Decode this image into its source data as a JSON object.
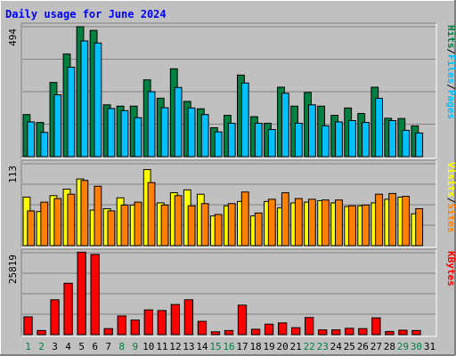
{
  "title": "Daily usage for June 2024",
  "colors": {
    "background": "#c0c0c0",
    "plot_background": "#c0c0c0",
    "title": "#0000ff",
    "hits": "#008040",
    "files": "#00c0ff",
    "visits": "#ffff00",
    "sites": "#ff8000",
    "kbytes": "#ff0000",
    "weekend_label": "#008040",
    "weekday_label": "#000000"
  },
  "days": [
    "1",
    "2",
    "3",
    "4",
    "5",
    "6",
    "7",
    "8",
    "9",
    "10",
    "11",
    "12",
    "13",
    "14",
    "15",
    "16",
    "17",
    "18",
    "19",
    "20",
    "21",
    "22",
    "23",
    "24",
    "25",
    "26",
    "27",
    "28",
    "29",
    "30",
    "31"
  ],
  "weekend_days": [
    1,
    2,
    8,
    9,
    15,
    16,
    22,
    23,
    29,
    30
  ],
  "chart_data": [
    {
      "type": "bar",
      "panel": "hits-files",
      "ylim": [
        0,
        494
      ],
      "tick_label": "494",
      "legend": [
        "Pages",
        "Files",
        "Hits"
      ],
      "series": [
        {
          "name": "Hits",
          "values": [
            160,
            130,
            282,
            390,
            494,
            480,
            197,
            192,
            192,
            292,
            222,
            334,
            210,
            182,
            110,
            157,
            310,
            152,
            127,
            264,
            192,
            244,
            192,
            157,
            185,
            164,
            264,
            146,
            145,
            117,
            0
          ]
        },
        {
          "name": "Files",
          "values": [
            132,
            92,
            235,
            340,
            440,
            432,
            183,
            175,
            148,
            247,
            186,
            263,
            185,
            160,
            94,
            127,
            280,
            127,
            103,
            241,
            127,
            197,
            117,
            132,
            137,
            130,
            222,
            137,
            100,
            90,
            0
          ]
        },
        {
          "name": "Pages",
          "values": [
            0,
            0,
            0,
            0,
            0,
            0,
            0,
            0,
            0,
            0,
            0,
            0,
            0,
            0,
            0,
            0,
            0,
            0,
            0,
            0,
            0,
            0,
            0,
            0,
            0,
            0,
            0,
            0,
            0,
            0,
            0
          ]
        }
      ]
    },
    {
      "type": "bar",
      "panel": "visits-sites",
      "ylim": [
        0,
        113
      ],
      "tick_label": "113",
      "legend": [
        "Sites",
        "Visits"
      ],
      "series": [
        {
          "name": "Visits",
          "values": [
            67,
            47,
            69,
            78,
            92,
            49,
            51,
            66,
            56,
            105,
            59,
            73,
            77,
            71,
            41,
            55,
            61,
            41,
            61,
            52,
            59,
            60,
            62,
            59,
            54,
            55,
            59,
            64,
            67,
            44,
            0
          ]
        },
        {
          "name": "Sites",
          "values": [
            48,
            60,
            65,
            71,
            90,
            82,
            48,
            56,
            60,
            87,
            56,
            69,
            55,
            58,
            43,
            58,
            74,
            45,
            64,
            73,
            65,
            64,
            63,
            63,
            55,
            56,
            71,
            72,
            68,
            51,
            0
          ]
        }
      ]
    },
    {
      "type": "bar",
      "panel": "kbytes",
      "ylim": [
        0,
        25819
      ],
      "tick_label": "25819",
      "legend": [
        "KBytes"
      ],
      "series": [
        {
          "name": "KBytes",
          "values": [
            5620,
            1300,
            11000,
            16200,
            26000,
            25300,
            1900,
            5900,
            4600,
            7800,
            7600,
            9500,
            11000,
            4200,
            900,
            1300,
            9300,
            1700,
            3300,
            3700,
            2200,
            5400,
            1500,
            1500,
            2000,
            1900,
            5300,
            1000,
            1400,
            1300,
            0
          ]
        }
      ]
    }
  ]
}
